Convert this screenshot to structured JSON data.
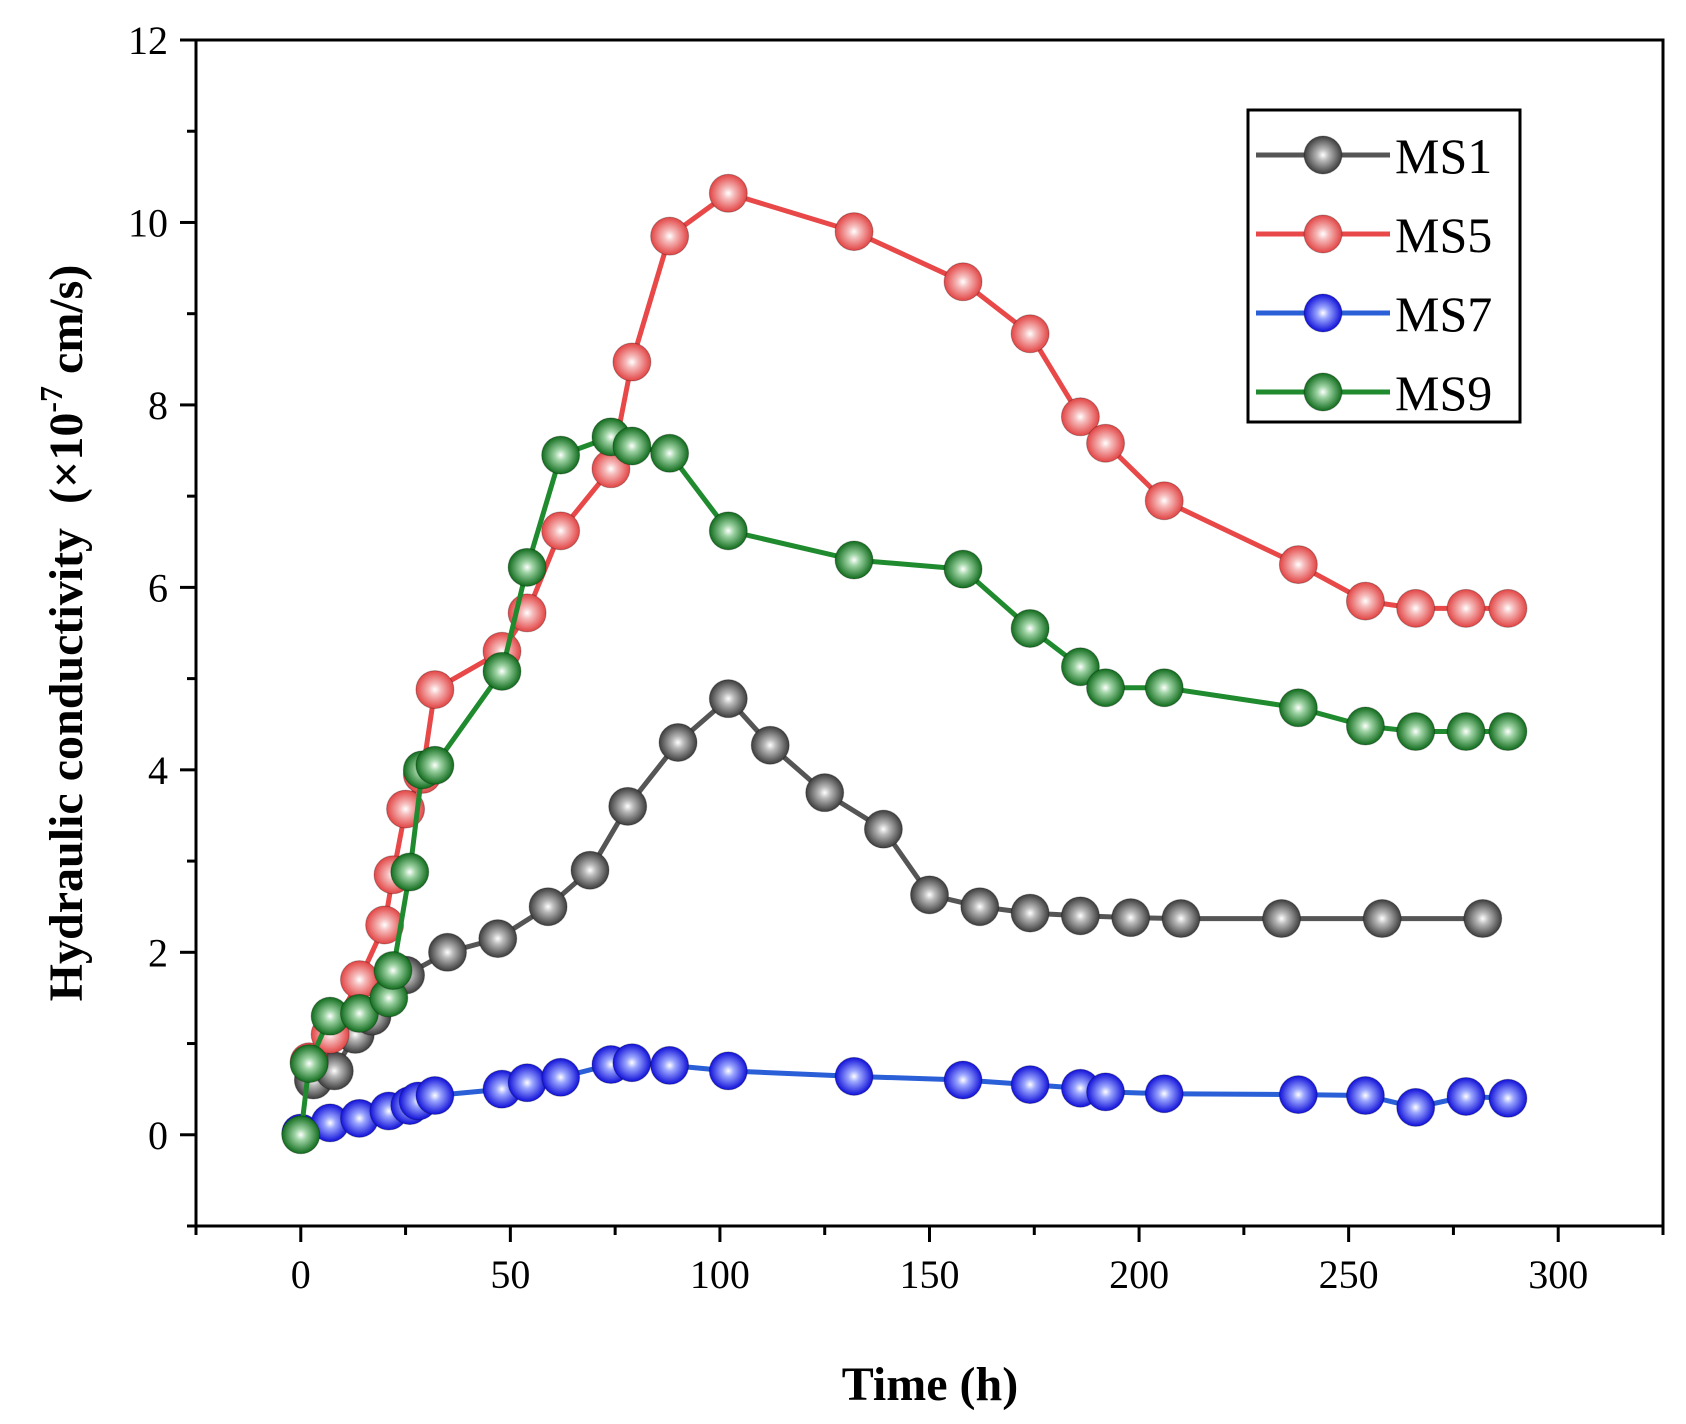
{
  "chart_data": {
    "type": "line",
    "title": "",
    "xlabel": "Time (h)",
    "ylabel": "Hydraulic conductivity",
    "ylabel_unit_prefix": "(×10",
    "ylabel_unit_exp": "-7",
    "ylabel_unit_suffix": " cm/s)",
    "xlim": [
      -25,
      325
    ],
    "ylim": [
      -1,
      12
    ],
    "xticks": [
      0,
      50,
      100,
      150,
      200,
      250,
      300
    ],
    "yticks": [
      0,
      2,
      4,
      6,
      8,
      10,
      12
    ],
    "grid": false,
    "legend": "top-right",
    "series": [
      {
        "name": "MS1",
        "color": "#555555",
        "x": [
          3,
          8,
          13,
          17,
          25,
          35,
          47,
          59,
          69,
          78,
          90,
          102,
          112,
          125,
          139,
          150,
          162,
          174,
          186,
          198,
          210,
          234,
          258,
          282
        ],
        "y": [
          0.6,
          0.7,
          1.1,
          1.3,
          1.75,
          2.0,
          2.15,
          2.5,
          2.9,
          3.6,
          4.3,
          4.78,
          4.27,
          3.75,
          3.35,
          2.63,
          2.5,
          2.43,
          2.4,
          2.38,
          2.37,
          2.37,
          2.37,
          2.37
        ]
      },
      {
        "name": "MS5",
        "color": "#e84848",
        "x": [
          2,
          7,
          14,
          20,
          22,
          25,
          29,
          32,
          48,
          54,
          62,
          74,
          79,
          88,
          102,
          132,
          158,
          174,
          186,
          192,
          206,
          238,
          254,
          266,
          278,
          288
        ],
        "y": [
          0.8,
          1.1,
          1.7,
          2.3,
          2.85,
          3.57,
          3.95,
          4.88,
          5.3,
          5.72,
          6.62,
          7.3,
          8.47,
          9.85,
          10.32,
          9.9,
          9.35,
          8.78,
          7.87,
          7.58,
          6.95,
          6.25,
          5.85,
          5.77,
          5.77,
          5.77
        ]
      },
      {
        "name": "MS7",
        "color": "#2a5fd8",
        "x": [
          0,
          7,
          14,
          21,
          26,
          28,
          32,
          48,
          54,
          62,
          74,
          79,
          88,
          102,
          132,
          158,
          174,
          186,
          192,
          206,
          238,
          254,
          266,
          278,
          288
        ],
        "y": [
          0.02,
          0.13,
          0.18,
          0.26,
          0.32,
          0.37,
          0.43,
          0.5,
          0.57,
          0.63,
          0.77,
          0.79,
          0.76,
          0.7,
          0.64,
          0.6,
          0.55,
          0.51,
          0.47,
          0.45,
          0.44,
          0.43,
          0.3,
          0.42,
          0.4
        ]
      },
      {
        "name": "MS9",
        "color": "#1f8a2e",
        "x": [
          0,
          2,
          7,
          14,
          21,
          22,
          26,
          29,
          32,
          48,
          54,
          62,
          74,
          79,
          88,
          102,
          132,
          158,
          174,
          186,
          192,
          206,
          238,
          254,
          266,
          278,
          288
        ],
        "y": [
          0.0,
          0.78,
          1.3,
          1.33,
          1.5,
          1.8,
          2.88,
          4.0,
          4.05,
          5.08,
          6.22,
          7.45,
          7.65,
          7.55,
          7.47,
          6.62,
          6.3,
          6.2,
          5.55,
          5.13,
          4.9,
          4.9,
          4.68,
          4.48,
          4.42,
          4.42,
          4.42
        ]
      }
    ]
  }
}
